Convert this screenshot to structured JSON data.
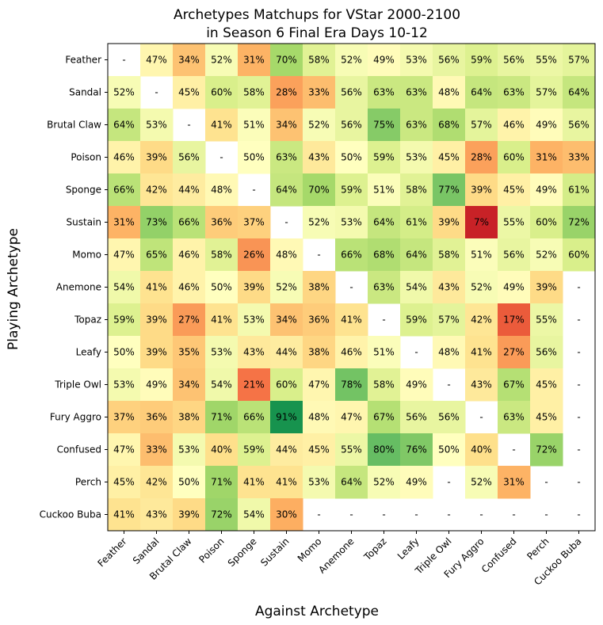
{
  "chart_data": {
    "type": "heatmap",
    "title": [
      "Archetypes Matchups for VStar 2000-2100",
      "in Season 6 Final Era Days 10-12"
    ],
    "xlabel": "Against Archetype",
    "ylabel": "Playing Archetype",
    "rows": [
      "Feather",
      "Sandal",
      "Brutal Claw",
      "Poison",
      "Sponge",
      "Sustain",
      "Momo",
      "Anemone",
      "Topaz",
      "Leafy",
      "Triple Owl",
      "Fury Aggro",
      "Confused",
      "Perch",
      "Cuckoo Buba"
    ],
    "columns": [
      "Feather",
      "Sandal",
      "Brutal Claw",
      "Poison",
      "Sponge",
      "Sustain",
      "Momo",
      "Anemone",
      "Topaz",
      "Leafy",
      "Triple Owl",
      "Fury Aggro",
      "Confused",
      "Perch",
      "Cuckoo Buba"
    ],
    "values": [
      [
        null,
        47,
        34,
        52,
        31,
        70,
        58,
        52,
        49,
        53,
        56,
        59,
        56,
        55,
        57
      ],
      [
        52,
        null,
        45,
        60,
        58,
        28,
        33,
        56,
        63,
        63,
        48,
        64,
        63,
        57,
        64
      ],
      [
        64,
        53,
        null,
        41,
        51,
        34,
        52,
        56,
        75,
        63,
        68,
        57,
        46,
        49,
        56
      ],
      [
        46,
        39,
        56,
        null,
        50,
        63,
        43,
        50,
        59,
        53,
        45,
        28,
        60,
        31,
        33
      ],
      [
        66,
        42,
        44,
        48,
        null,
        64,
        70,
        59,
        51,
        58,
        77,
        39,
        45,
        49,
        61
      ],
      [
        31,
        73,
        66,
        36,
        37,
        null,
        52,
        53,
        64,
        61,
        39,
        7,
        55,
        60,
        72
      ],
      [
        47,
        65,
        46,
        58,
        26,
        48,
        null,
        66,
        68,
        64,
        58,
        51,
        56,
        52,
        60
      ],
      [
        54,
        41,
        46,
        50,
        39,
        52,
        38,
        null,
        63,
        54,
        43,
        52,
        49,
        39,
        null
      ],
      [
        59,
        39,
        27,
        41,
        53,
        34,
        36,
        41,
        null,
        59,
        57,
        42,
        17,
        55,
        null
      ],
      [
        50,
        39,
        35,
        53,
        43,
        44,
        38,
        46,
        51,
        null,
        48,
        41,
        27,
        56,
        null
      ],
      [
        53,
        49,
        34,
        54,
        21,
        60,
        47,
        78,
        58,
        49,
        null,
        43,
        67,
        45,
        null
      ],
      [
        37,
        36,
        38,
        71,
        66,
        91,
        48,
        47,
        67,
        56,
        56,
        null,
        63,
        45,
        null
      ],
      [
        47,
        33,
        53,
        40,
        59,
        44,
        45,
        55,
        80,
        76,
        50,
        40,
        null,
        72,
        null
      ],
      [
        45,
        42,
        50,
        71,
        41,
        41,
        53,
        64,
        52,
        49,
        null,
        52,
        31,
        null,
        null
      ],
      [
        41,
        43,
        39,
        72,
        54,
        30,
        null,
        null,
        null,
        null,
        null,
        null,
        null,
        null,
        null
      ]
    ],
    "missing_label": "-",
    "value_suffix": "%",
    "colormap": "RdYlGn",
    "vmin": 0,
    "vmax": 100
  }
}
